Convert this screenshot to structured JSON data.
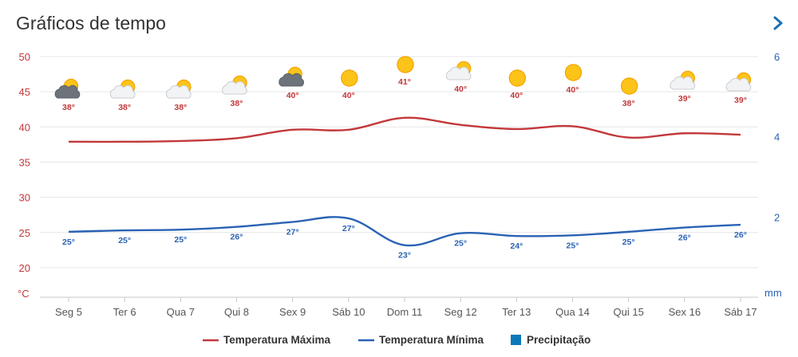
{
  "header": {
    "title": "Gráficos de tempo"
  },
  "colors": {
    "max": "#c2383b",
    "min": "#2a62b4",
    "precip": "#0c78b9",
    "chevron": "#1a6fb4",
    "grid": "#e6e6e6"
  },
  "chart_data": {
    "type": "line",
    "categories": [
      "Seg 5",
      "Ter 6",
      "Qua 7",
      "Qui 8",
      "Sex 9",
      "Sáb 10",
      "Dom 11",
      "Seg 12",
      "Ter 13",
      "Qua 14",
      "Qui 15",
      "Sex 16",
      "Sáb 17"
    ],
    "series": [
      {
        "name": "Temperatura Máxima",
        "values": [
          37.9,
          37.9,
          38.0,
          38.4,
          39.6,
          39.6,
          41.3,
          40.3,
          39.7,
          40.1,
          38.5,
          39.1,
          38.9
        ],
        "labels": [
          "38°",
          "38°",
          "38°",
          "38°",
          "40°",
          "40°",
          "41°",
          "40°",
          "40°",
          "40°",
          "38°",
          "39°",
          "39°"
        ]
      },
      {
        "name": "Temperatura Mínima",
        "values": [
          25.1,
          25.3,
          25.4,
          25.8,
          26.5,
          27.0,
          23.2,
          24.9,
          24.5,
          24.6,
          25.1,
          25.7,
          26.1
        ],
        "labels": [
          "25°",
          "25°",
          "25°",
          "26°",
          "27°",
          "27°",
          "23°",
          "25°",
          "24°",
          "25°",
          "25°",
          "26°",
          "26°"
        ]
      },
      {
        "name": "Precipitação",
        "values": [
          0,
          0,
          0,
          0,
          0,
          0,
          0,
          0,
          0,
          0,
          0,
          0,
          0
        ]
      }
    ],
    "icons": [
      "cloud-sun-dark-icon",
      "cloud-sun-icon",
      "cloud-sun-icon",
      "cloud-sun-icon",
      "cloud-sun-dark-icon",
      "sun-icon",
      "sun-icon",
      "cloud-sun-icon",
      "sun-icon",
      "sun-icon",
      "sun-icon",
      "cloud-sun-icon",
      "cloud-sun-icon"
    ],
    "y_left": {
      "unit": "°C",
      "ticks": [
        20,
        25,
        30,
        35,
        40,
        45,
        50
      ],
      "range": [
        15.8,
        50
      ]
    },
    "y_right": {
      "unit": "mm",
      "ticks": [
        2,
        4,
        6
      ],
      "range": [
        0,
        6
      ]
    },
    "legend": {
      "position": "bottom-center"
    },
    "grid": true
  }
}
